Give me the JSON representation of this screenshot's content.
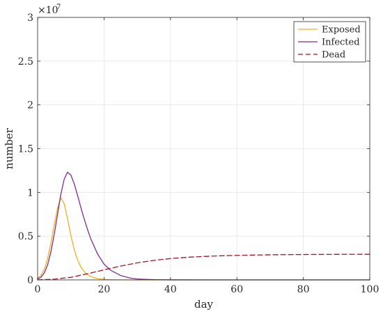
{
  "chart_data": {
    "type": "line",
    "xlabel": "day",
    "ylabel": "number",
    "xlim": [
      0,
      100
    ],
    "ylim": [
      0,
      30000000
    ],
    "xticks": [
      0,
      20,
      40,
      60,
      80,
      100
    ],
    "xtick_labels": [
      "0",
      "20",
      "40",
      "60",
      "80",
      "100"
    ],
    "yticks": [
      0,
      5000000,
      10000000,
      15000000,
      20000000,
      25000000,
      30000000
    ],
    "ytick_labels": [
      "0",
      "0.5",
      "1",
      "1.5",
      "2",
      "2.5",
      "3"
    ],
    "y_multiplier_base": "×10",
    "y_multiplier_exponent": "7",
    "grid": true,
    "legend_position": "top-right",
    "series": [
      {
        "name": "Exposed",
        "color": "#EDB120",
        "dash": "solid",
        "x": [
          0,
          1,
          2,
          3,
          4,
          5,
          6,
          7,
          8,
          9,
          10,
          11,
          12,
          13,
          14,
          15,
          16,
          18,
          20,
          22,
          25,
          30,
          40,
          50,
          60,
          70,
          80,
          90,
          100
        ],
        "y": [
          200000,
          500000,
          1200000,
          2400000,
          4200000,
          6300000,
          8200000,
          9400000,
          8700000,
          7000000,
          5100000,
          3500000,
          2300000,
          1500000,
          950000,
          600000,
          380000,
          150000,
          60000,
          25000,
          8000,
          1000,
          0,
          0,
          0,
          0,
          0,
          0,
          0
        ]
      },
      {
        "name": "Infected",
        "color": "#7E2F8E",
        "dash": "solid",
        "x": [
          0,
          1,
          2,
          3,
          4,
          5,
          6,
          7,
          8,
          9,
          10,
          11,
          12,
          13,
          14,
          15,
          16,
          18,
          20,
          22,
          25,
          28,
          30,
          35,
          40,
          50,
          60,
          70,
          80,
          90,
          100
        ],
        "y": [
          100000,
          300000,
          800000,
          1700000,
          3200000,
          5200000,
          7500000,
          9800000,
          11500000,
          12300000,
          12000000,
          11000000,
          9700000,
          8300000,
          7000000,
          5800000,
          4700000,
          3000000,
          1800000,
          1100000,
          500000,
          200000,
          100000,
          30000,
          5000,
          0,
          0,
          0,
          0,
          0,
          0
        ]
      },
      {
        "name": "Dead",
        "color": "#A2142F",
        "dash": "dashed",
        "x": [
          0,
          5,
          10,
          15,
          20,
          25,
          30,
          35,
          40,
          45,
          50,
          55,
          60,
          65,
          70,
          75,
          80,
          85,
          90,
          95,
          100
        ],
        "y": [
          0,
          80000,
          300000,
          700000,
          1150000,
          1580000,
          1950000,
          2230000,
          2440000,
          2580000,
          2680000,
          2750000,
          2800000,
          2840000,
          2870000,
          2890000,
          2900000,
          2910000,
          2920000,
          2925000,
          2930000
        ]
      }
    ]
  }
}
